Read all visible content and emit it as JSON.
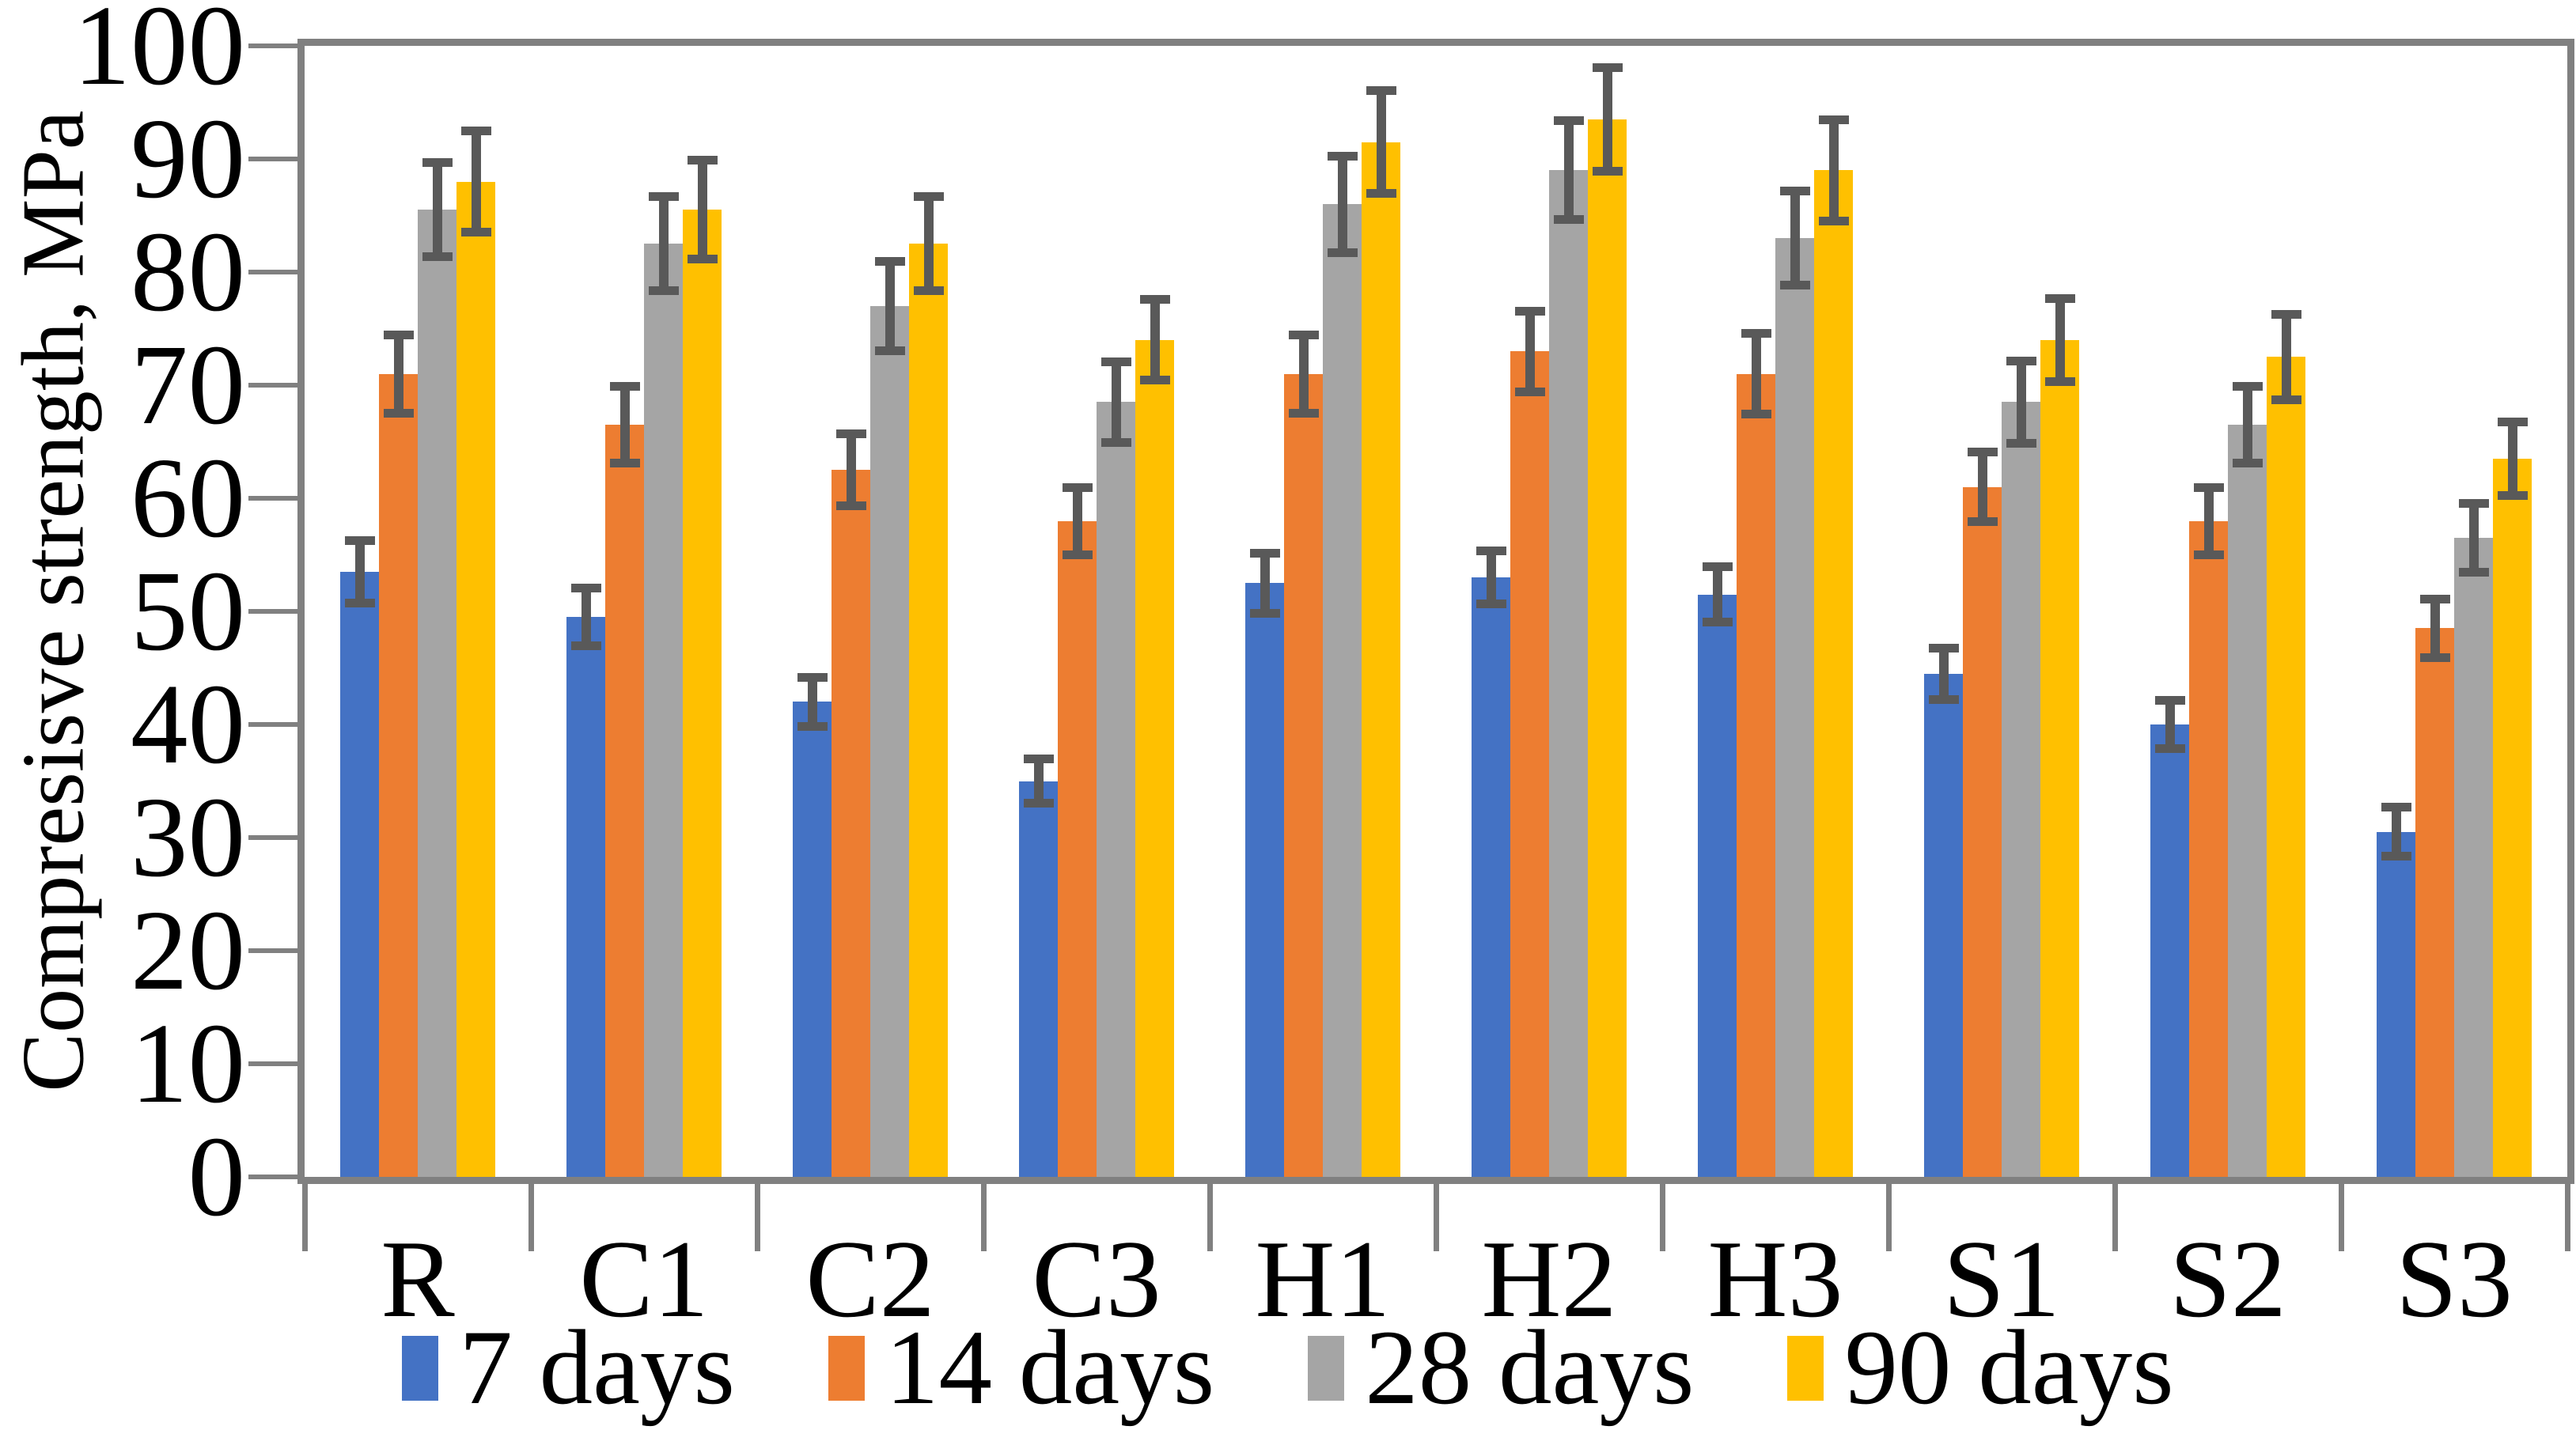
{
  "chart_data": {
    "type": "bar",
    "title": "",
    "xlabel": "",
    "ylabel": "Compresisve strength, MPa",
    "ylim": [
      0,
      100
    ],
    "y_ticks": [
      0,
      10,
      20,
      30,
      40,
      50,
      60,
      70,
      80,
      90,
      100
    ],
    "grid": false,
    "legend_position": "bottom",
    "categories": [
      "R",
      "C1",
      "C2",
      "C3",
      "H1",
      "H2",
      "H3",
      "S1",
      "S2",
      "S3"
    ],
    "series": [
      {
        "name": "7 days",
        "color": "#4472C4",
        "values": [
          53.5,
          49.5,
          42,
          35,
          52.5,
          53,
          51.5,
          44.5,
          40,
          30.5
        ],
        "errors": [
          2.8,
          2.6,
          2.2,
          2.0,
          2.7,
          2.4,
          2.5,
          2.3,
          2.2,
          2.2
        ]
      },
      {
        "name": "14 days",
        "color": "#ED7D31",
        "values": [
          71,
          66.5,
          62.5,
          58,
          71,
          73,
          71,
          61,
          58,
          48.5
        ],
        "errors": [
          3.5,
          3.4,
          3.2,
          3.0,
          3.5,
          3.6,
          3.6,
          3.1,
          3.0,
          2.6
        ]
      },
      {
        "name": "28 days",
        "color": "#A5A5A5",
        "values": [
          85.5,
          82.5,
          77,
          68.5,
          86,
          89,
          83,
          68.5,
          66.5,
          56.5
        ],
        "errors": [
          4.2,
          4.2,
          4.0,
          3.6,
          4.3,
          4.4,
          4.2,
          3.7,
          3.4,
          3.1
        ]
      },
      {
        "name": "90 days",
        "color": "#FFC000",
        "values": [
          88,
          85.5,
          82.5,
          74,
          91.5,
          93.5,
          89,
          74,
          72.5,
          63.5
        ],
        "errors": [
          4.5,
          4.4,
          4.2,
          3.6,
          4.6,
          4.6,
          4.5,
          3.7,
          3.8,
          3.3
        ]
      }
    ],
    "error_bar_color": "#595959",
    "axis_color": "#808080",
    "error_bars": true
  }
}
